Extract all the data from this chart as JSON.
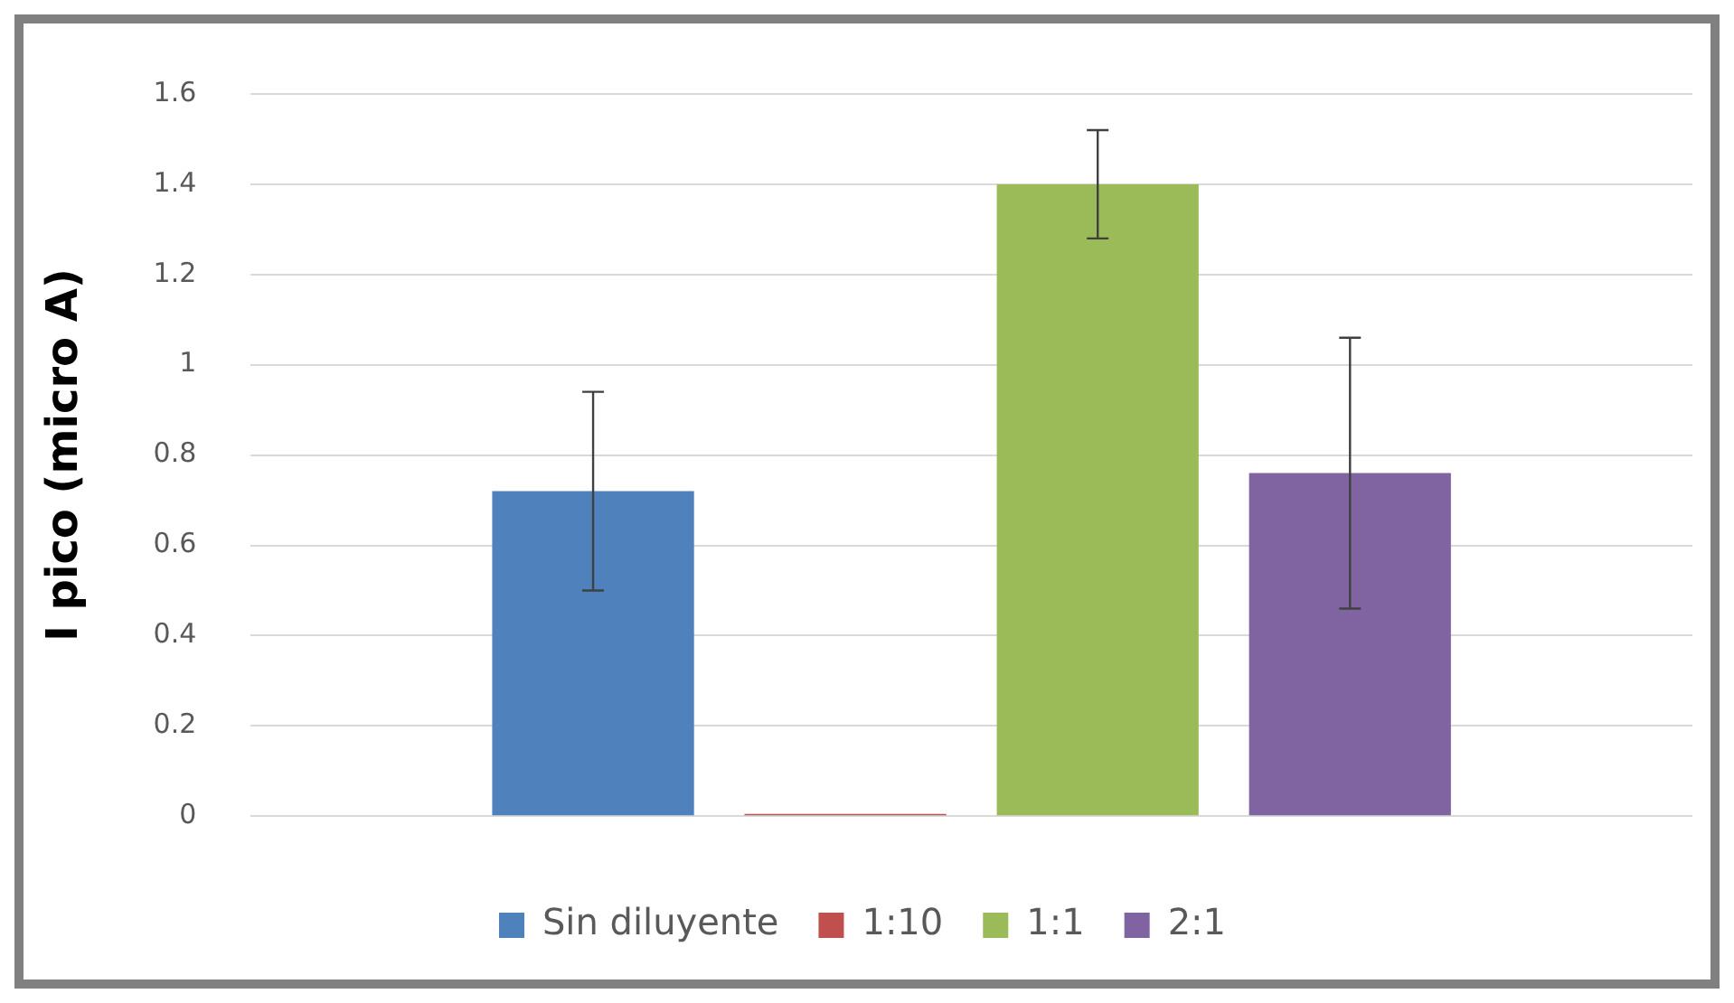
{
  "chart_data": {
    "type": "bar",
    "ylabel": "I pico (micro A)",
    "categories": [
      null
    ],
    "series": [
      {
        "name": "Sin diluyente",
        "color": "#4f81bd",
        "values": [
          0.72
        ],
        "errors": [
          0.22
        ]
      },
      {
        "name": "1:10",
        "color": "#c0504d",
        "values": [
          0.005
        ]
      },
      {
        "name": "1:1",
        "color": "#9bbb59",
        "values": [
          1.4
        ],
        "errors": [
          0.12
        ]
      },
      {
        "name": "2:1",
        "color": "#8064a2",
        "values": [
          0.76
        ],
        "errors": [
          0.3
        ]
      }
    ],
    "ylim": [
      0,
      1.6
    ],
    "yticks": [
      0,
      0.2,
      0.4,
      0.6,
      0.8,
      1,
      1.2,
      1.4,
      1.6
    ],
    "grid": "y",
    "legend": "bottom"
  }
}
